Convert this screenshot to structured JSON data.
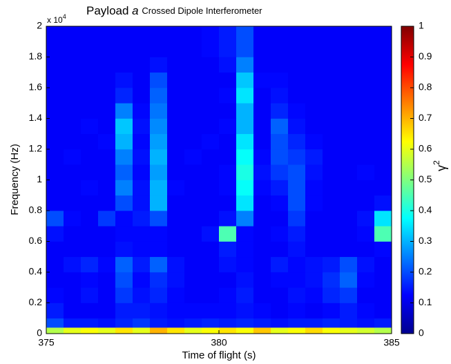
{
  "chart_data": {
    "type": "heatmap",
    "title_parts": [
      "Payload",
      "a",
      "Crossed Dipole Interferometer"
    ],
    "x_label": "Time of flight (s)",
    "y_label": "Frequency (Hz)",
    "y_multiplier": [
      "x 10",
      "4"
    ],
    "colorbar_label": [
      "γ",
      "2"
    ],
    "colormap": "jet",
    "x_edges": [
      375,
      375.5,
      376,
      376.5,
      377,
      377.5,
      378,
      378.5,
      379,
      379.5,
      380,
      380.5,
      381,
      381.5,
      382,
      382.5,
      383,
      383.5,
      384,
      384.5,
      385
    ],
    "y_edges": [
      0,
      0.04,
      0.1,
      0.2,
      0.3,
      0.4,
      0.5,
      0.6,
      0.7,
      0.8,
      0.9,
      1,
      1.1,
      1.2,
      1.3,
      1.4,
      1.5,
      1.6,
      1.7,
      1.8,
      2
    ],
    "z": [
      [
        0.55,
        0.6,
        0.62,
        0.6,
        0.65,
        0.6,
        0.7,
        0.65,
        0.6,
        0.62,
        0.65,
        0.62,
        0.68,
        0.6,
        0.62,
        0.66,
        0.62,
        0.6,
        0.58,
        0.55
      ],
      [
        0.2,
        0.15,
        0.15,
        0.14,
        0.16,
        0.18,
        0.15,
        0.14,
        0.15,
        0.16,
        0.15,
        0.16,
        0.15,
        0.14,
        0.15,
        0.15,
        0.16,
        0.15,
        0.14,
        0.15
      ],
      [
        0.15,
        0.12,
        0.12,
        0.12,
        0.15,
        0.15,
        0.14,
        0.13,
        0.13,
        0.13,
        0.13,
        0.14,
        0.13,
        0.12,
        0.13,
        0.12,
        0.13,
        0.15,
        0.13,
        0.12
      ],
      [
        0.13,
        0.12,
        0.14,
        0.12,
        0.18,
        0.14,
        0.16,
        0.13,
        0.12,
        0.12,
        0.13,
        0.15,
        0.12,
        0.12,
        0.14,
        0.13,
        0.16,
        0.18,
        0.12,
        0.12
      ],
      [
        0.12,
        0.12,
        0.13,
        0.12,
        0.2,
        0.13,
        0.17,
        0.14,
        0.12,
        0.12,
        0.12,
        0.14,
        0.12,
        0.13,
        0.13,
        0.14,
        0.17,
        0.22,
        0.13,
        0.12
      ],
      [
        0.12,
        0.14,
        0.16,
        0.13,
        0.22,
        0.15,
        0.22,
        0.14,
        0.12,
        0.12,
        0.14,
        0.13,
        0.12,
        0.15,
        0.13,
        0.14,
        0.15,
        0.2,
        0.14,
        0.12
      ],
      [
        0.12,
        0.12,
        0.12,
        0.12,
        0.14,
        0.13,
        0.13,
        0.12,
        0.12,
        0.12,
        0.15,
        0.13,
        0.12,
        0.12,
        0.14,
        0.12,
        0.12,
        0.12,
        0.12,
        0.13
      ],
      [
        0.14,
        0.12,
        0.12,
        0.12,
        0.13,
        0.13,
        0.13,
        0.12,
        0.12,
        0.14,
        0.45,
        0.13,
        0.12,
        0.13,
        0.15,
        0.12,
        0.12,
        0.12,
        0.13,
        0.45
      ],
      [
        0.2,
        0.13,
        0.12,
        0.18,
        0.13,
        0.15,
        0.2,
        0.12,
        0.12,
        0.12,
        0.14,
        0.25,
        0.12,
        0.12,
        0.18,
        0.12,
        0.12,
        0.12,
        0.14,
        0.35
      ],
      [
        0.12,
        0.12,
        0.12,
        0.12,
        0.2,
        0.14,
        0.3,
        0.12,
        0.12,
        0.12,
        0.12,
        0.35,
        0.12,
        0.13,
        0.2,
        0.13,
        0.12,
        0.12,
        0.12,
        0.14
      ],
      [
        0.12,
        0.12,
        0.13,
        0.12,
        0.25,
        0.14,
        0.3,
        0.13,
        0.12,
        0.12,
        0.13,
        0.38,
        0.13,
        0.15,
        0.2,
        0.13,
        0.12,
        0.12,
        0.12,
        0.12
      ],
      [
        0.12,
        0.12,
        0.12,
        0.12,
        0.22,
        0.13,
        0.28,
        0.12,
        0.12,
        0.12,
        0.13,
        0.4,
        0.14,
        0.18,
        0.2,
        0.14,
        0.12,
        0.12,
        0.13,
        0.12
      ],
      [
        0.12,
        0.13,
        0.12,
        0.12,
        0.25,
        0.14,
        0.3,
        0.12,
        0.13,
        0.12,
        0.12,
        0.38,
        0.13,
        0.2,
        0.18,
        0.15,
        0.12,
        0.12,
        0.12,
        0.12
      ],
      [
        0.12,
        0.12,
        0.12,
        0.13,
        0.3,
        0.13,
        0.28,
        0.12,
        0.12,
        0.13,
        0.12,
        0.35,
        0.12,
        0.2,
        0.16,
        0.13,
        0.12,
        0.12,
        0.12,
        0.12
      ],
      [
        0.12,
        0.12,
        0.13,
        0.12,
        0.32,
        0.14,
        0.26,
        0.12,
        0.12,
        0.12,
        0.13,
        0.3,
        0.12,
        0.22,
        0.14,
        0.12,
        0.12,
        0.12,
        0.12,
        0.12
      ],
      [
        0.12,
        0.12,
        0.12,
        0.12,
        0.25,
        0.13,
        0.24,
        0.12,
        0.12,
        0.12,
        0.12,
        0.3,
        0.12,
        0.16,
        0.13,
        0.12,
        0.12,
        0.12,
        0.12,
        0.12
      ],
      [
        0.12,
        0.12,
        0.12,
        0.12,
        0.16,
        0.12,
        0.22,
        0.12,
        0.12,
        0.12,
        0.13,
        0.35,
        0.12,
        0.14,
        0.12,
        0.12,
        0.12,
        0.12,
        0.12,
        0.12
      ],
      [
        0.12,
        0.12,
        0.12,
        0.12,
        0.14,
        0.12,
        0.2,
        0.12,
        0.12,
        0.12,
        0.12,
        0.32,
        0.13,
        0.13,
        0.12,
        0.12,
        0.12,
        0.12,
        0.12,
        0.12
      ],
      [
        0.12,
        0.12,
        0.12,
        0.12,
        0.12,
        0.12,
        0.14,
        0.12,
        0.12,
        0.12,
        0.14,
        0.25,
        0.12,
        0.12,
        0.12,
        0.12,
        0.12,
        0.12,
        0.12,
        0.12
      ],
      [
        0.12,
        0.12,
        0.12,
        0.12,
        0.12,
        0.12,
        0.12,
        0.12,
        0.12,
        0.13,
        0.15,
        0.2,
        0.12,
        0.12,
        0.12,
        0.12,
        0.12,
        0.12,
        0.12,
        0.12
      ]
    ],
    "xlim": [
      375,
      385
    ],
    "xticks": [
      375,
      380,
      385
    ],
    "ylim": [
      0,
      2
    ],
    "yticks": [
      0,
      0.2,
      0.4,
      0.6,
      0.8,
      1,
      1.2,
      1.4,
      1.6,
      1.8,
      2
    ],
    "clim": [
      0,
      1
    ],
    "cticks": [
      0,
      0.1,
      0.2,
      0.3,
      0.4,
      0.5,
      0.6,
      0.7,
      0.8,
      0.9,
      1
    ]
  }
}
